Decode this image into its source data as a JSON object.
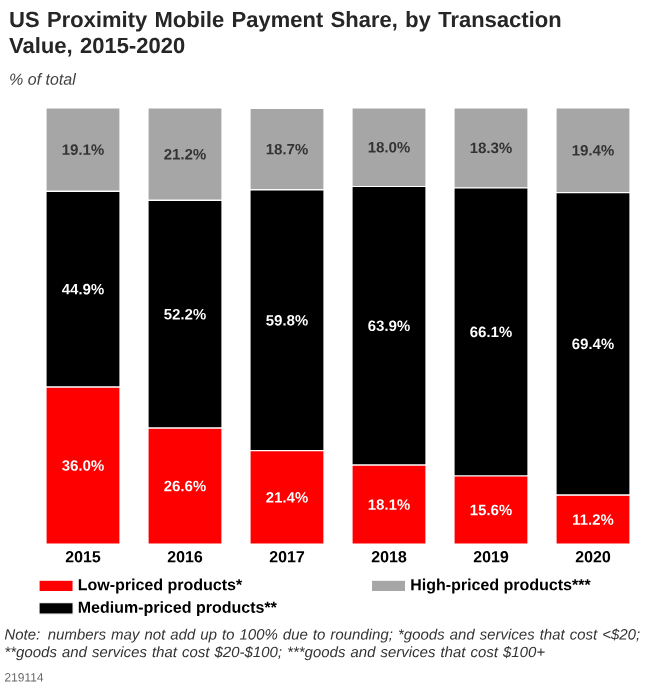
{
  "chart_data": {
    "type": "bar",
    "stacked": true,
    "title": "US Proximity Mobile Payment Share, by Transaction Value, 2015-2020",
    "subtitle": "% of total",
    "categories": [
      "2015",
      "2016",
      "2017",
      "2018",
      "2019",
      "2020"
    ],
    "series": [
      {
        "name": "Low-priced products*",
        "color": "#ff0000",
        "values": [
          36.0,
          26.6,
          21.4,
          18.1,
          15.6,
          11.2
        ],
        "value_labels": [
          "36.0%",
          "26.6%",
          "21.4%",
          "18.1%",
          "15.6%",
          "11.2%"
        ]
      },
      {
        "name": "Medium-priced products**",
        "color": "#000000",
        "values": [
          44.9,
          52.2,
          59.8,
          63.9,
          66.1,
          69.4
        ],
        "value_labels": [
          "44.9%",
          "52.2%",
          "59.8%",
          "63.9%",
          "66.1%",
          "69.4%"
        ]
      },
      {
        "name": "High-priced products***",
        "color": "#a6a6a6",
        "values": [
          19.1,
          21.2,
          18.7,
          18.0,
          18.3,
          19.4
        ],
        "value_labels": [
          "19.1%",
          "21.2%",
          "18.7%",
          "18.0%",
          "18.3%",
          "19.4%"
        ]
      }
    ],
    "legend": "bottom",
    "annotations": [
      "Note: numbers may not add up to 100% due to rounding;",
      "*goods and services that cost <$20;",
      "**goods and services that cost $20-$100;",
      "***goods and services that cost $100+",
      "219114"
    ]
  }
}
